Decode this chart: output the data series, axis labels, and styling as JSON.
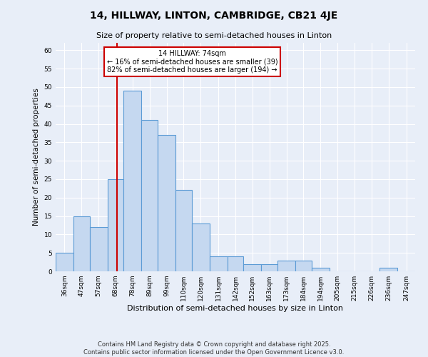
{
  "title": "14, HILLWAY, LINTON, CAMBRIDGE, CB21 4JE",
  "subtitle": "Size of property relative to semi-detached houses in Linton",
  "xlabel": "Distribution of semi-detached houses by size in Linton",
  "ylabel": "Number of semi-detached properties",
  "bin_labels": [
    "36sqm",
    "47sqm",
    "57sqm",
    "68sqm",
    "78sqm",
    "89sqm",
    "99sqm",
    "110sqm",
    "120sqm",
    "131sqm",
    "142sqm",
    "152sqm",
    "163sqm",
    "173sqm",
    "184sqm",
    "194sqm",
    "205sqm",
    "215sqm",
    "226sqm",
    "236sqm",
    "247sqm"
  ],
  "bar_values": [
    5,
    15,
    12,
    25,
    49,
    41,
    37,
    22,
    13,
    4,
    4,
    2,
    2,
    3,
    3,
    1,
    0,
    0,
    0,
    1,
    0
  ],
  "bar_color": "#c5d8f0",
  "bar_edge_color": "#5b9bd5",
  "vline_x_index": 3,
  "bin_edges": [
    36,
    47,
    57,
    68,
    78,
    89,
    99,
    110,
    120,
    131,
    142,
    152,
    163,
    173,
    184,
    194,
    205,
    215,
    226,
    236,
    247,
    258
  ],
  "annotation_title": "14 HILLWAY: 74sqm",
  "annotation_smaller": "← 16% of semi-detached houses are smaller (39)",
  "annotation_larger": "82% of semi-detached houses are larger (194) →",
  "annotation_box_color": "#ffffff",
  "annotation_box_edge": "#cc0000",
  "vline_color": "#cc0000",
  "ylim": [
    0,
    62
  ],
  "yticks": [
    0,
    5,
    10,
    15,
    20,
    25,
    30,
    35,
    40,
    45,
    50,
    55,
    60
  ],
  "background_color": "#e8eef8",
  "plot_bg_color": "#e8eef8",
  "grid_color": "#ffffff",
  "footer_line1": "Contains HM Land Registry data © Crown copyright and database right 2025.",
  "footer_line2": "Contains public sector information licensed under the Open Government Licence v3.0."
}
